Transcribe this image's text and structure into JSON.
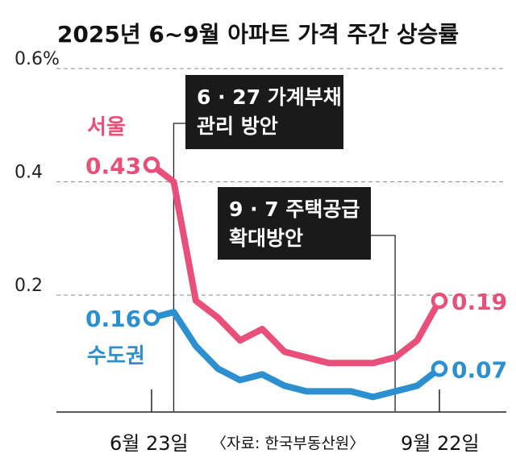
{
  "chart_data": {
    "type": "line",
    "title": "2025년 6~9월 아파트 가격 주간 상승률",
    "y_ticks": [
      {
        "value": 0.6,
        "label": "0.6%"
      },
      {
        "value": 0.4,
        "label": "0.4"
      },
      {
        "value": 0.2,
        "label": "0.2"
      }
    ],
    "ylim": [
      -0.005,
      0.6
    ],
    "x_start_label": "6월 23일",
    "x_end_label": "9월 22일",
    "source": "〈자료: 한국부동산원〉",
    "x": [
      0,
      1,
      2,
      3,
      4,
      5,
      6,
      7,
      8,
      9,
      10,
      11,
      12,
      13
    ],
    "series": [
      {
        "name": "서울",
        "color": "#e8507a",
        "values": [
          0.43,
          0.4,
          0.19,
          0.16,
          0.12,
          0.14,
          0.1,
          0.09,
          0.08,
          0.08,
          0.08,
          0.09,
          0.12,
          0.19
        ],
        "start_label": "0.43",
        "end_label": "0.19"
      },
      {
        "name": "수도권",
        "color": "#2b8fd0",
        "values": [
          0.16,
          0.17,
          0.11,
          0.07,
          0.05,
          0.06,
          0.04,
          0.03,
          0.03,
          0.03,
          0.02,
          0.03,
          0.04,
          0.07
        ],
        "start_label": "0.16",
        "end_label": "0.07"
      }
    ],
    "annotations": [
      {
        "x": 1,
        "lines": [
          "6 · 27 가계부채",
          "관리 방안"
        ]
      },
      {
        "x": 11,
        "lines": [
          "9 · 7 주택공급",
          "확대방안"
        ]
      }
    ]
  }
}
